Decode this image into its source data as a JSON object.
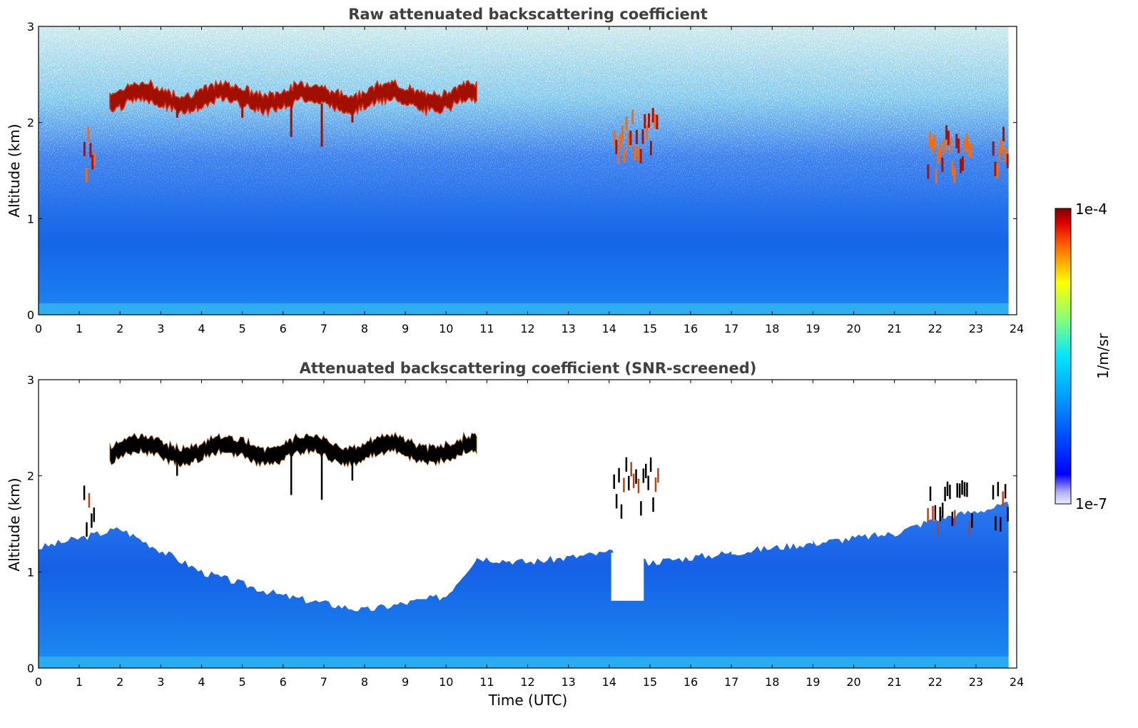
{
  "chart_data": [
    {
      "type": "heatmap",
      "title": "Raw attenuated backscattering coefficient",
      "xlabel": "",
      "ylabel": "Altitude (km)",
      "xlim": [
        0,
        24
      ],
      "ylim": [
        0,
        3
      ],
      "xticks": [
        "0",
        "1",
        "2",
        "3",
        "4",
        "5",
        "6",
        "7",
        "8",
        "9",
        "10",
        "11",
        "12",
        "13",
        "14",
        "15",
        "16",
        "17",
        "18",
        "19",
        "20",
        "21",
        "22",
        "23",
        "24"
      ],
      "yticks": [
        "0",
        "1",
        "2",
        "3"
      ],
      "x_units": "hours UTC",
      "y_units": "km",
      "screened": false,
      "data_end_hour": 23.8,
      "cloud_layer": {
        "start_hour": 1.75,
        "end_hour": 10.75,
        "altitude_km": 2.25
      },
      "cloud_patches": [
        {
          "start_hour": 1.1,
          "end_hour": 1.4,
          "altitude_km": 1.6
        },
        {
          "start_hour": 14.1,
          "end_hour": 15.2,
          "altitude_km": 1.8
        },
        {
          "start_hour": 21.8,
          "end_hour": 22.9,
          "altitude_km": 1.6
        },
        {
          "start_hour": 23.4,
          "end_hour": 23.8,
          "altitude_km": 1.65
        }
      ]
    },
    {
      "type": "heatmap",
      "title": "Attenuated backscattering coefficient (SNR-screened)",
      "xlabel": "Time (UTC)",
      "ylabel": "Altitude (km)",
      "xlim": [
        0,
        24
      ],
      "ylim": [
        0,
        3
      ],
      "xticks": [
        "0",
        "1",
        "2",
        "3",
        "4",
        "5",
        "6",
        "7",
        "8",
        "9",
        "10",
        "11",
        "12",
        "13",
        "14",
        "15",
        "16",
        "17",
        "18",
        "19",
        "20",
        "21",
        "22",
        "23",
        "24"
      ],
      "yticks": [
        "0",
        "1",
        "2",
        "3"
      ],
      "x_units": "hours UTC",
      "y_units": "km",
      "screened": true,
      "data_end_hour": 23.8,
      "boundary_layer_top_km": [
        {
          "hour": 0,
          "km": 1.25
        },
        {
          "hour": 2,
          "km": 1.45
        },
        {
          "hour": 4,
          "km": 1.0
        },
        {
          "hour": 6,
          "km": 0.75
        },
        {
          "hour": 8,
          "km": 0.6
        },
        {
          "hour": 10,
          "km": 0.75
        },
        {
          "hour": 10.75,
          "km": 1.15
        },
        {
          "hour": 12,
          "km": 1.1
        },
        {
          "hour": 14,
          "km": 1.2
        },
        {
          "hour": 15,
          "km": 1.1
        },
        {
          "hour": 17,
          "km": 1.2
        },
        {
          "hour": 19,
          "km": 1.3
        },
        {
          "hour": 21,
          "km": 1.4
        },
        {
          "hour": 22,
          "km": 1.55
        },
        {
          "hour": 23.8,
          "km": 1.7
        }
      ]
    }
  ],
  "colorbar": {
    "label": "1/m/sr",
    "max_label": "1e-4",
    "min_label": "1e-7",
    "colormap": "jet",
    "colors": [
      "#e8e8f8",
      "#8080ff",
      "#0000ff",
      "#0088ff",
      "#00ffff",
      "#80ff80",
      "#ffff00",
      "#ff8000",
      "#ff0000",
      "#800000"
    ]
  }
}
